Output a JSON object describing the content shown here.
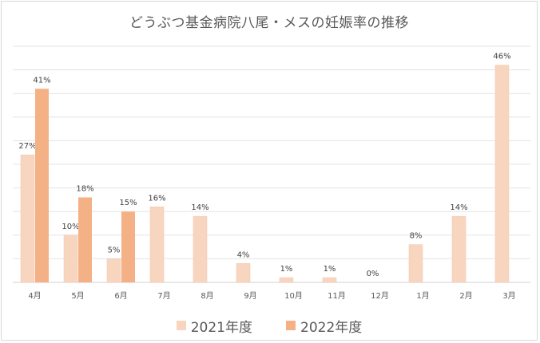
{
  "chart_data": {
    "type": "bar",
    "title": "どうぶつ基金病院八尾・メスの妊娠率の推移",
    "categories": [
      "4月",
      "5月",
      "6月",
      "7月",
      "8月",
      "9月",
      "10月",
      "11月",
      "12月",
      "1月",
      "2月",
      "3月"
    ],
    "series": [
      {
        "name": "2021年度",
        "color": "#f8d5bf",
        "values": [
          27,
          10,
          5,
          16,
          14,
          4,
          1,
          1,
          0,
          8,
          14,
          46
        ],
        "labels": [
          "27%",
          "10%",
          "5%",
          "16%",
          "14%",
          "4%",
          "1%",
          "1%",
          "0%",
          "8%",
          "14%",
          "46%"
        ]
      },
      {
        "name": "2022年度",
        "color": "#f4b185",
        "values": [
          41,
          18,
          15,
          null,
          null,
          null,
          null,
          null,
          null,
          null,
          null,
          null
        ],
        "labels": [
          "41%",
          "18%",
          "15%",
          null,
          null,
          null,
          null,
          null,
          null,
          null,
          null,
          null
        ]
      }
    ],
    "ylim": [
      0,
      50
    ],
    "grid": true,
    "legend_position": "bottom"
  }
}
